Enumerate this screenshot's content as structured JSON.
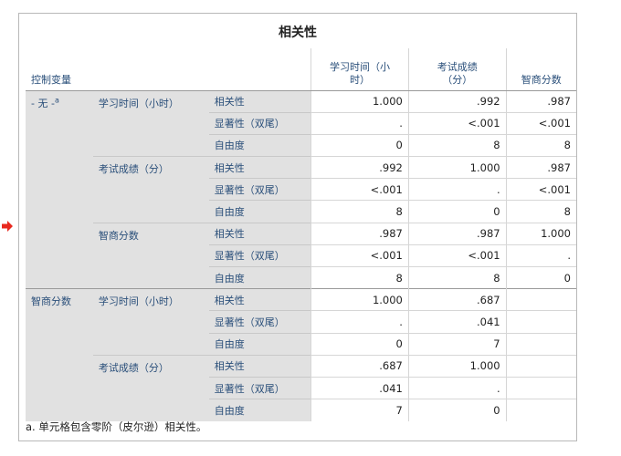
{
  "table_title": "相关性",
  "header": {
    "control_variable": "控制变量",
    "columns": [
      "学习时间（小\n时）",
      "考试成绩\n（分）",
      "智商分数"
    ]
  },
  "groups": [
    {
      "control": "- 无 -",
      "control_sup": "a",
      "variables": [
        {
          "name": "学习时间（小时）",
          "rows": [
            {
              "stat": "相关性",
              "values": [
                "1.000",
                ".992",
                ".987"
              ]
            },
            {
              "stat": "显著性（双尾）",
              "values": [
                ".",
                "<.001",
                "<.001"
              ]
            },
            {
              "stat": "自由度",
              "values": [
                "0",
                "8",
                "8"
              ]
            }
          ]
        },
        {
          "name": "考试成绩（分）",
          "rows": [
            {
              "stat": "相关性",
              "values": [
                ".992",
                "1.000",
                ".987"
              ]
            },
            {
              "stat": "显著性（双尾）",
              "values": [
                "<.001",
                ".",
                "<.001"
              ]
            },
            {
              "stat": "自由度",
              "values": [
                "8",
                "0",
                "8"
              ]
            }
          ]
        },
        {
          "name": "智商分数",
          "rows": [
            {
              "stat": "相关性",
              "values": [
                ".987",
                ".987",
                "1.000"
              ]
            },
            {
              "stat": "显著性（双尾）",
              "values": [
                "<.001",
                "<.001",
                "."
              ]
            },
            {
              "stat": "自由度",
              "values": [
                "8",
                "8",
                "0"
              ]
            }
          ]
        }
      ]
    },
    {
      "control": "智商分数",
      "control_sup": "",
      "variables": [
        {
          "name": "学习时间（小时）",
          "rows": [
            {
              "stat": "相关性",
              "values": [
                "1.000",
                ".687",
                ""
              ]
            },
            {
              "stat": "显著性（双尾）",
              "values": [
                ".",
                ".041",
                ""
              ]
            },
            {
              "stat": "自由度",
              "values": [
                "0",
                "7",
                ""
              ]
            }
          ]
        },
        {
          "name": "考试成绩（分）",
          "rows": [
            {
              "stat": "相关性",
              "values": [
                ".687",
                "1.000",
                ""
              ]
            },
            {
              "stat": "显著性（双尾）",
              "values": [
                ".041",
                ".",
                ""
              ]
            },
            {
              "stat": "自由度",
              "values": [
                "7",
                "0",
                ""
              ]
            }
          ]
        }
      ]
    }
  ],
  "footnote": "a. 单元格包含零阶（皮尔逊）相关性。",
  "colors": {
    "label_bg": "#e1e1e1",
    "label_text": "#2a4f7a",
    "arrow": "#e8281e"
  },
  "icons": {
    "row_marker": "red-arrow-icon"
  }
}
